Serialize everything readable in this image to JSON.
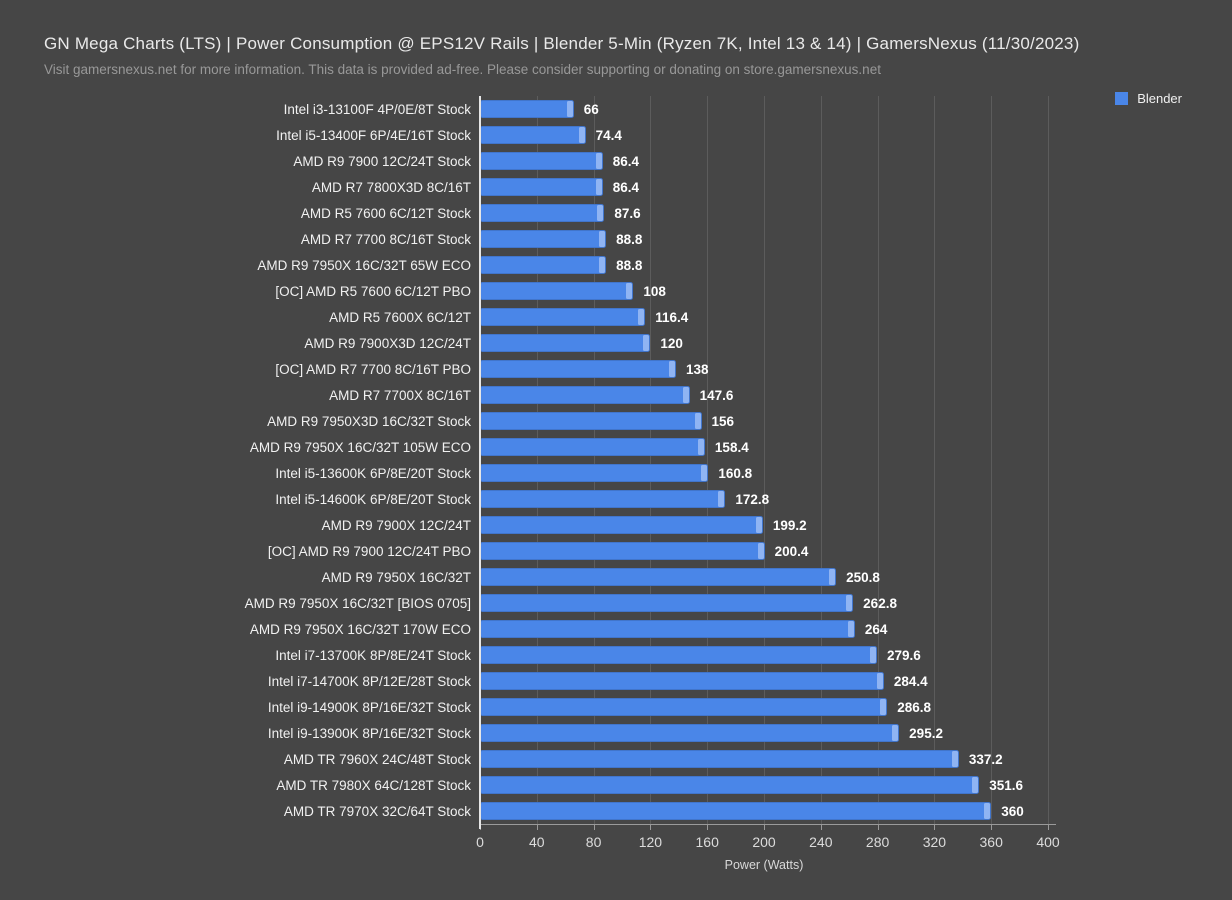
{
  "header": {
    "title": "GN Mega Charts (LTS) | Power Consumption @ EPS12V Rails | Blender 5-Min (Ryzen 7K, Intel 13 & 14) | GamersNexus (11/30/2023)",
    "subtitle": "Visit gamersnexus.net for more information. This data is provided ad-free. Please consider supporting or donating on store.gamersnexus.net"
  },
  "legend": {
    "label": "Blender",
    "color": "#4a86e8"
  },
  "colors": {
    "background": "#464646",
    "bar": "#4a86e8",
    "bar_cap": "#8fb4f3",
    "gridline": "#5c5c5c",
    "axis_line": "#e6e6e6",
    "title_text": "#e9e9e9",
    "subtitle_text": "#989898",
    "category_text": "#f1f1f1",
    "value_text": "#ffffff"
  },
  "chart_data": {
    "type": "bar",
    "orientation": "horizontal",
    "title": "GN Mega Charts (LTS) | Power Consumption @ EPS12V Rails | Blender 5-Min (Ryzen 7K, Intel 13 & 14) | GamersNexus (11/30/2023)",
    "subtitle": "Visit gamersnexus.net for more information. This data is provided ad-free. Please consider supporting or donating on store.gamersnexus.net",
    "xlabel": "Power (Watts)",
    "ylabel": "",
    "xlim": [
      0,
      400
    ],
    "xticks": [
      0,
      40,
      80,
      120,
      160,
      200,
      240,
      280,
      320,
      360,
      400
    ],
    "grid": true,
    "legend": [
      "Blender"
    ],
    "legend_position": "top-right",
    "categories": [
      "Intel i3-13100F 4P/0E/8T Stock",
      "Intel i5-13400F 6P/4E/16T Stock",
      "AMD R9 7900 12C/24T Stock",
      "AMD R7 7800X3D 8C/16T",
      "AMD R5 7600 6C/12T Stock",
      "AMD R7 7700 8C/16T Stock",
      "AMD R9 7950X 16C/32T 65W ECO",
      "[OC] AMD R5 7600 6C/12T PBO",
      "AMD R5 7600X 6C/12T",
      "AMD R9 7900X3D 12C/24T",
      "[OC] AMD R7 7700 8C/16T PBO",
      "AMD R7 7700X 8C/16T",
      "AMD R9 7950X3D 16C/32T Stock",
      "AMD R9 7950X 16C/32T 105W ECO",
      "Intel i5-13600K 6P/8E/20T Stock",
      "Intel i5-14600K 6P/8E/20T Stock",
      "AMD R9 7900X 12C/24T",
      "[OC] AMD R9 7900 12C/24T PBO",
      "AMD R9 7950X 16C/32T",
      "AMD R9 7950X 16C/32T [BIOS 0705]",
      "AMD R9 7950X 16C/32T 170W ECO",
      "Intel i7-13700K 8P/8E/24T Stock",
      "Intel i7-14700K 8P/12E/28T Stock",
      "Intel i9-14900K 8P/16E/32T Stock",
      "Intel i9-13900K 8P/16E/32T Stock",
      "AMD TR 7960X 24C/48T Stock",
      "AMD TR 7980X 64C/128T Stock",
      "AMD TR 7970X 32C/64T Stock"
    ],
    "values": [
      66,
      74.4,
      86.4,
      86.4,
      87.6,
      88.8,
      88.8,
      108,
      116.4,
      120,
      138,
      147.6,
      156,
      158.4,
      160.8,
      172.8,
      199.2,
      200.4,
      250.8,
      262.8,
      264,
      279.6,
      284.4,
      286.8,
      295.2,
      337.2,
      351.6,
      360
    ]
  }
}
